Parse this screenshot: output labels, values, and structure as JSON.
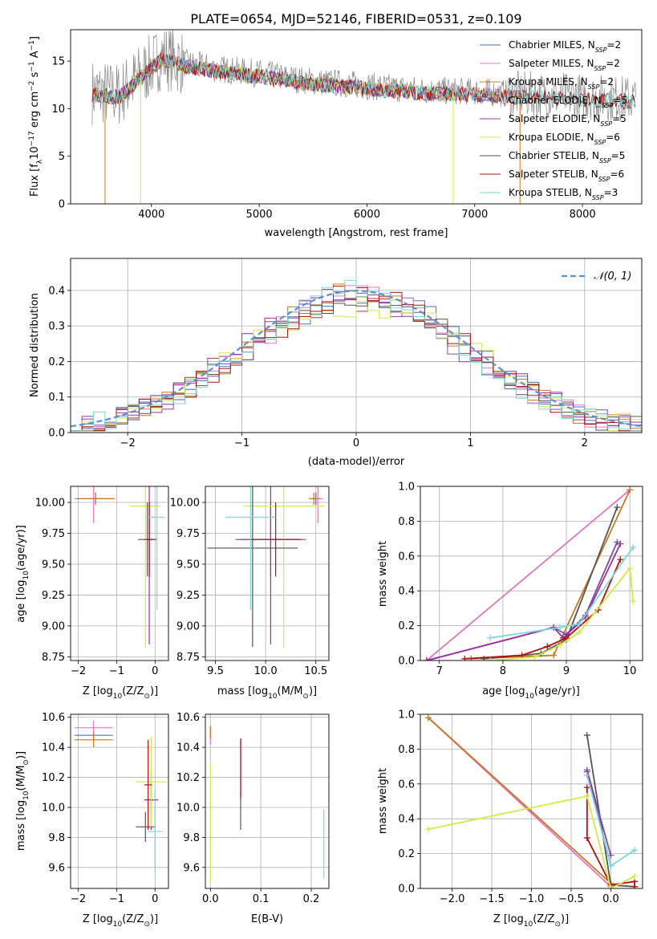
{
  "figure_title": "PLATE=0654, MJD=52146, FIBERID=0531, z=0.109",
  "colors": {
    "chabrier_miles": "#4c72b0",
    "salpeter_miles": "#e377c2",
    "kroupa_miles": "#c8781e",
    "chabrier_elodie": "#7b4fa0",
    "salpeter_elodie": "#9b30a0",
    "kroupa_elodie": "#d4e94a",
    "chabrier_stelib": "#555555",
    "salpeter_stelib": "#b01010",
    "kroupa_stelib": "#7ad8d8",
    "data": "#888888",
    "normal": "#5b8fd6"
  },
  "chart_data": [
    {
      "id": "spectrum",
      "type": "line",
      "xlabel": "wavelength [Angstrom, rest frame]",
      "ylabel_prefix": "Flux [f",
      "ylabel_sub": "λ",
      "ylabel_main": "10",
      "ylabel_sup1": "−17",
      "ylabel_rest": " erg cm",
      "ylabel_sup2": "−2",
      "ylabel_rest2": " s",
      "ylabel_sup3": "−1",
      "ylabel_rest3": " A",
      "ylabel_sup4": "−1",
      "ylabel_end": "]",
      "xlim": [
        3250,
        8550
      ],
      "ylim": [
        0,
        18.3
      ],
      "xticks": [
        4000,
        5000,
        6000,
        7000,
        8000
      ],
      "yticks": [
        0,
        5,
        10,
        15
      ],
      "legend": [
        {
          "prefix": "Chabrier MILES, N",
          "sub": "SSP",
          "suffix": "=2",
          "color": "#4c72b0"
        },
        {
          "prefix": "Salpeter MILES, N",
          "sub": "SSP",
          "suffix": "=2",
          "color": "#e377c2"
        },
        {
          "prefix": "Kroupa MILES, N",
          "sub": "SSP",
          "suffix": "=2",
          "color": "#c8781e"
        },
        {
          "prefix": "Chabrier ELODIE, N",
          "sub": "SSP",
          "suffix": "=5",
          "color": "#7b4fa0"
        },
        {
          "prefix": "Salpeter ELODIE, N",
          "sub": "SSP",
          "suffix": "=5",
          "color": "#9b30a0"
        },
        {
          "prefix": "Kroupa ELODIE, N",
          "sub": "SSP",
          "suffix": "=6",
          "color": "#d4e94a"
        },
        {
          "prefix": "Chabrier STELIB, N",
          "sub": "SSP",
          "suffix": "=5",
          "color": "#555555"
        },
        {
          "prefix": "Salpeter STELIB, N",
          "sub": "SSP",
          "suffix": "=6",
          "color": "#b01010"
        },
        {
          "prefix": "Kroupa STELIB, N",
          "sub": "SSP",
          "suffix": "=3",
          "color": "#7ad8d8"
        }
      ],
      "continuum": [
        [
          3450,
          11.8
        ],
        [
          3700,
          11.5
        ],
        [
          3900,
          13.5
        ],
        [
          4100,
          15.5
        ],
        [
          4300,
          14.8
        ],
        [
          4600,
          14.2
        ],
        [
          5000,
          13.7
        ],
        [
          5400,
          13.0
        ],
        [
          5800,
          12.6
        ],
        [
          6200,
          12.2
        ],
        [
          6600,
          11.9
        ],
        [
          7000,
          11.8
        ],
        [
          7400,
          11.5
        ],
        [
          7800,
          11.4
        ],
        [
          8100,
          11.2
        ],
        [
          8500,
          11.0
        ]
      ]
    },
    {
      "id": "residuals",
      "type": "line",
      "xlabel": "(data-model)/error",
      "ylabel": "Normed distribution",
      "xlim": [
        -2.5,
        2.5
      ],
      "ylim": [
        0,
        0.49
      ],
      "xticks": [
        -2,
        -1,
        0,
        1,
        2
      ],
      "yticks": [
        0.0,
        0.1,
        0.2,
        0.3,
        0.4
      ],
      "legend_label": "𝒩(0, 1)",
      "bin_edges_start": -2.5,
      "bin_width": 0.1
    },
    {
      "id": "age_vs_Z",
      "type": "scatter",
      "xlabel": "Z [log",
      "xlabel_sub": "10",
      "xlabel_end": "(Z/Z",
      "xlabel_sun": "⊙",
      "xlabel_close": ")]",
      "ylabel": "age  [log",
      "ylabel_sub": "10",
      "ylabel_end": "(age/yr)]",
      "xlim": [
        -2.2,
        0.35
      ],
      "ylim": [
        8.72,
        10.13
      ],
      "xticks": [
        -2,
        -1,
        0
      ],
      "yticks": [
        8.75,
        9.0,
        9.25,
        9.5,
        9.75,
        10.0
      ],
      "points": [
        {
          "series": "chabrier_miles",
          "x": -1.55,
          "xerr": 0.12,
          "y": 10.03,
          "yerr": 0.05
        },
        {
          "series": "salpeter_miles",
          "x": -1.6,
          "xerr": 0.5,
          "y": 10.03,
          "yerr": 0.2
        },
        {
          "series": "kroupa_miles",
          "x": -1.55,
          "xerr": 0.5,
          "y": 10.03,
          "yerr": 0.05
        },
        {
          "series": "chabrier_elodie",
          "x": -0.15,
          "xerr": 0.05,
          "y": 9.7,
          "yerr": 0.3
        },
        {
          "series": "salpeter_elodie",
          "x": -0.15,
          "xerr": 0.15,
          "y": 9.7,
          "yerr": 0.85
        },
        {
          "series": "kroupa_elodie",
          "x": -0.25,
          "xerr": 0.4,
          "y": 9.97,
          "yerr": 1.15
        },
        {
          "series": "chabrier_stelib",
          "x": -0.2,
          "xerr": 0.25,
          "y": 9.7,
          "yerr": 0.3
        },
        {
          "series": "salpeter_stelib",
          "x": -0.15,
          "xerr": 0.1,
          "y": 9.7,
          "yerr": 0.3
        },
        {
          "series": "kroupa_stelib",
          "x": 0.05,
          "xerr": 0.2,
          "y": 9.88,
          "yerr": 0.75
        }
      ]
    },
    {
      "id": "age_vs_mass",
      "type": "scatter",
      "xlabel": "mass [log",
      "xlabel_sub": "10",
      "xlabel_end": "(M/M",
      "xlabel_sun": "⊙",
      "xlabel_close": ")]",
      "xlim": [
        9.4,
        10.63
      ],
      "ylim": [
        8.72,
        10.13
      ],
      "xticks": [
        9.5,
        10.0,
        10.5
      ],
      "yticks": [
        8.75,
        9.0,
        9.25,
        9.5,
        9.75,
        10.0
      ],
      "points": [
        {
          "series": "chabrier_miles",
          "x": 10.5,
          "xerr": 0.05,
          "y": 10.03,
          "yerr": 0.05
        },
        {
          "series": "salpeter_miles",
          "x": 10.52,
          "xerr": 0.05,
          "y": 10.03,
          "yerr": 0.2
        },
        {
          "series": "kroupa_miles",
          "x": 10.48,
          "xerr": 0.05,
          "y": 10.03,
          "yerr": 0.05
        },
        {
          "series": "chabrier_elodie",
          "x": 10.05,
          "xerr": 0.3,
          "y": 9.7,
          "yerr": 0.3
        },
        {
          "series": "salpeter_elodie",
          "x": 10.05,
          "xerr": 0.35,
          "y": 9.7,
          "yerr": 0.85
        },
        {
          "series": "kroupa_elodie",
          "x": 10.18,
          "xerr": 0.4,
          "y": 9.97,
          "yerr": 1.15
        },
        {
          "series": "chabrier_stelib",
          "x": 9.87,
          "xerr": 0.45,
          "y": 9.63,
          "yerr": 0.8
        },
        {
          "series": "salpeter_stelib",
          "x": 10.1,
          "xerr": 0.25,
          "y": 9.7,
          "yerr": 0.3
        },
        {
          "series": "kroupa_stelib",
          "x": 9.85,
          "xerr": 0.25,
          "y": 9.88,
          "yerr": 0.75
        }
      ]
    },
    {
      "id": "weight_vs_age",
      "type": "line",
      "xlabel": "age  [log",
      "xlabel_sub": "10",
      "xlabel_end": "(age/yr)]",
      "ylabel": "mass weight",
      "xlim": [
        6.7,
        10.2
      ],
      "ylim": [
        0,
        1.0
      ],
      "xticks": [
        7,
        8,
        9,
        10
      ],
      "yticks": [
        0.0,
        0.2,
        0.4,
        0.6,
        0.8,
        1.0
      ],
      "series": [
        {
          "name": "salpeter_miles",
          "x": [
            6.8,
            10.0
          ],
          "y": [
            0.0,
            0.98
          ]
        },
        {
          "name": "kroupa_miles",
          "x": [
            7.5,
            8.8,
            10.0
          ],
          "y": [
            0.01,
            0.03,
            0.98
          ]
        },
        {
          "name": "chabrier_stelib",
          "x": [
            7.7,
            8.6,
            9.0,
            9.8
          ],
          "y": [
            0.01,
            0.04,
            0.12,
            0.88
          ]
        },
        {
          "name": "chabrier_elodie",
          "x": [
            6.8,
            8.8,
            9.0,
            9.3,
            9.8
          ],
          "y": [
            0.0,
            0.19,
            0.15,
            0.26,
            0.68
          ]
        },
        {
          "name": "salpeter_elodie",
          "x": [
            6.8,
            8.8,
            8.95,
            9.3,
            9.85
          ],
          "y": [
            0.0,
            0.19,
            0.13,
            0.25,
            0.67
          ]
        },
        {
          "name": "salpeter_stelib",
          "x": [
            7.4,
            8.3,
            8.7,
            9.0,
            9.5,
            9.85
          ],
          "y": [
            0.01,
            0.03,
            0.08,
            0.13,
            0.29,
            0.58
          ]
        },
        {
          "name": "kroupa_elodie",
          "x": [
            7.8,
            8.5,
            8.9,
            9.2,
            10.0,
            10.05
          ],
          "y": [
            0.0,
            0.02,
            0.09,
            0.16,
            0.53,
            0.34
          ]
        },
        {
          "name": "kroupa_stelib",
          "x": [
            7.8,
            8.9,
            9.2,
            10.05
          ],
          "y": [
            0.13,
            0.19,
            0.21,
            0.65
          ]
        }
      ]
    },
    {
      "id": "mass_vs_Z",
      "type": "scatter",
      "xlabel": "Z [log",
      "xlabel_sub": "10",
      "xlabel_end": "(Z/Z",
      "xlabel_sun": "⊙",
      "xlabel_close": ")]",
      "ylabel": "mass [log",
      "ylabel_sub": "10",
      "ylabel_end": "(M/M",
      "ylabel_sun": "⊙",
      "ylabel_close": ")]",
      "xlim": [
        -2.2,
        0.35
      ],
      "ylim": [
        9.46,
        10.62
      ],
      "xticks": [
        -2,
        -1,
        0
      ],
      "yticks": [
        9.6,
        9.8,
        10.0,
        10.2,
        10.4,
        10.6
      ],
      "points": [
        {
          "series": "chabrier_miles",
          "x": -1.6,
          "xerr": 0.5,
          "y": 10.48,
          "yerr": 0.04
        },
        {
          "series": "salpeter_miles",
          "x": -1.6,
          "xerr": 0.5,
          "y": 10.53,
          "yerr": 0.05
        },
        {
          "series": "kroupa_miles",
          "x": -1.6,
          "xerr": 0.5,
          "y": 10.45,
          "yerr": 0.05
        },
        {
          "series": "chabrier_elodie",
          "x": -0.1,
          "xerr": 0.15,
          "y": 10.05,
          "yerr": 0.1
        },
        {
          "series": "salpeter_elodie",
          "x": -0.1,
          "xerr": 0.18,
          "y": 10.05,
          "yerr": 0.2
        },
        {
          "series": "kroupa_elodie",
          "x": -0.1,
          "xerr": 0.4,
          "y": 10.17,
          "yerr": 0.3
        },
        {
          "series": "chabrier_stelib",
          "x": -0.25,
          "xerr": 0.25,
          "y": 9.87,
          "yerr": 0.1
        },
        {
          "series": "salpeter_stelib",
          "x": -0.18,
          "xerr": 0.1,
          "y": 10.15,
          "yerr": 0.3
        },
        {
          "series": "kroupa_stelib",
          "x": 0.0,
          "xerr": 0.2,
          "y": 9.84,
          "yerr": 0.28
        }
      ]
    },
    {
      "id": "mass_vs_ebv",
      "type": "scatter",
      "xlabel": "E(B-V)",
      "xlim": [
        -0.01,
        0.235
      ],
      "ylim": [
        9.46,
        10.62
      ],
      "xticks": [
        0.0,
        0.1,
        0.2
      ],
      "yticks": [
        9.6,
        9.8,
        10.0,
        10.2,
        10.4,
        10.6
      ],
      "points": [
        {
          "series": "salpeter_miles",
          "x": 0.0,
          "y": 10.48,
          "yerr": 0.06
        },
        {
          "series": "kroupa_miles",
          "x": 0.0,
          "y": 10.5,
          "yerr": 0.04
        },
        {
          "series": "kroupa_elodie",
          "x": 0.0,
          "y": 9.9,
          "yerr": 0.4
        },
        {
          "series": "chabrier_stelib",
          "x": 0.06,
          "y": 10.15,
          "yerr": 0.3
        },
        {
          "series": "salpeter_stelib",
          "x": 0.06,
          "y": 10.26,
          "yerr": 0.2
        },
        {
          "series": "kroupa_stelib",
          "x": 0.225,
          "y": 9.76,
          "yerr": 0.23
        }
      ]
    },
    {
      "id": "weight_vs_Z",
      "type": "line",
      "xlabel": "Z [log",
      "xlabel_sub": "10",
      "xlabel_end": "(Z/Z",
      "xlabel_sun": "⊙",
      "xlabel_close": ")]",
      "ylabel": "mass weight",
      "xlim": [
        -2.4,
        0.4
      ],
      "ylim": [
        0,
        1.0
      ],
      "xticks": [
        -2.0,
        -1.5,
        -1.0,
        -0.5,
        0.0
      ],
      "yticks": [
        0.0,
        0.2,
        0.4,
        0.6,
        0.8,
        1.0
      ],
      "series": [
        {
          "name": "salpeter_miles",
          "x": [
            -2.3,
            0.0
          ],
          "y": [
            0.98,
            0.01
          ]
        },
        {
          "name": "kroupa_miles",
          "x": [
            -2.3,
            0.0
          ],
          "y": [
            0.98,
            0.03
          ]
        },
        {
          "name": "chabrier_stelib",
          "x": [
            -0.3,
            0.0,
            0.3
          ],
          "y": [
            0.88,
            0.02,
            0.01
          ]
        },
        {
          "name": "chabrier_elodie",
          "x": [
            -0.3,
            0.0
          ],
          "y": [
            0.68,
            0.19
          ]
        },
        {
          "name": "salpeter_elodie",
          "x": [
            -0.3,
            0.0
          ],
          "y": [
            0.67,
            0.13
          ]
        },
        {
          "name": "salpeter_stelib",
          "x": [
            -0.3,
            -0.3,
            0.0,
            0.3,
            0.3
          ],
          "y": [
            0.58,
            0.29,
            0.02,
            0.04,
            0.01
          ]
        },
        {
          "name": "kroupa_elodie",
          "x": [
            -2.3,
            -0.3,
            0.0,
            0.3
          ],
          "y": [
            0.34,
            0.53,
            0.0,
            0.07
          ]
        },
        {
          "name": "kroupa_stelib",
          "x": [
            -0.3,
            0.0,
            0.3
          ],
          "y": [
            0.65,
            0.13,
            0.22
          ]
        }
      ]
    }
  ]
}
